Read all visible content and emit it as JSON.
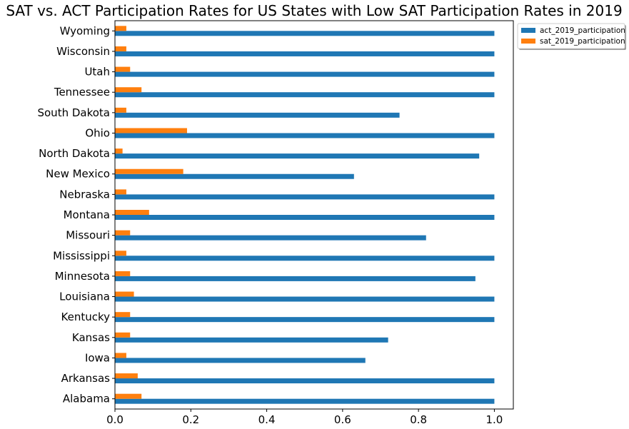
{
  "chart_data": {
    "type": "bar",
    "orientation": "horizontal",
    "title": "SAT vs. ACT Participation Rates for US States with Low SAT Participation Rates in 2019",
    "xlabel": "",
    "ylabel": "",
    "xlim": [
      0,
      1.05
    ],
    "xticks": [
      "0.0",
      "0.2",
      "0.4",
      "0.6",
      "0.8",
      "1.0"
    ],
    "grid": false,
    "legend_position": "outside-top-right",
    "categories": [
      "Alabama",
      "Arkansas",
      "Iowa",
      "Kansas",
      "Kentucky",
      "Louisiana",
      "Minnesota",
      "Mississippi",
      "Missouri",
      "Montana",
      "Nebraska",
      "New Mexico",
      "North Dakota",
      "Ohio",
      "South Dakota",
      "Tennessee",
      "Utah",
      "Wisconsin",
      "Wyoming"
    ],
    "series": [
      {
        "name": "act_2019_participation",
        "color": "#1f77b4",
        "values": [
          1.0,
          1.0,
          0.66,
          0.72,
          1.0,
          1.0,
          0.95,
          1.0,
          0.82,
          1.0,
          1.0,
          0.63,
          0.96,
          1.0,
          0.75,
          1.0,
          1.0,
          1.0,
          1.0
        ]
      },
      {
        "name": "sat_2019_participation",
        "color": "#ff7f0e",
        "values": [
          0.07,
          0.06,
          0.03,
          0.04,
          0.04,
          0.05,
          0.04,
          0.03,
          0.04,
          0.09,
          0.03,
          0.18,
          0.02,
          0.19,
          0.03,
          0.07,
          0.04,
          0.03,
          0.03
        ]
      }
    ]
  }
}
